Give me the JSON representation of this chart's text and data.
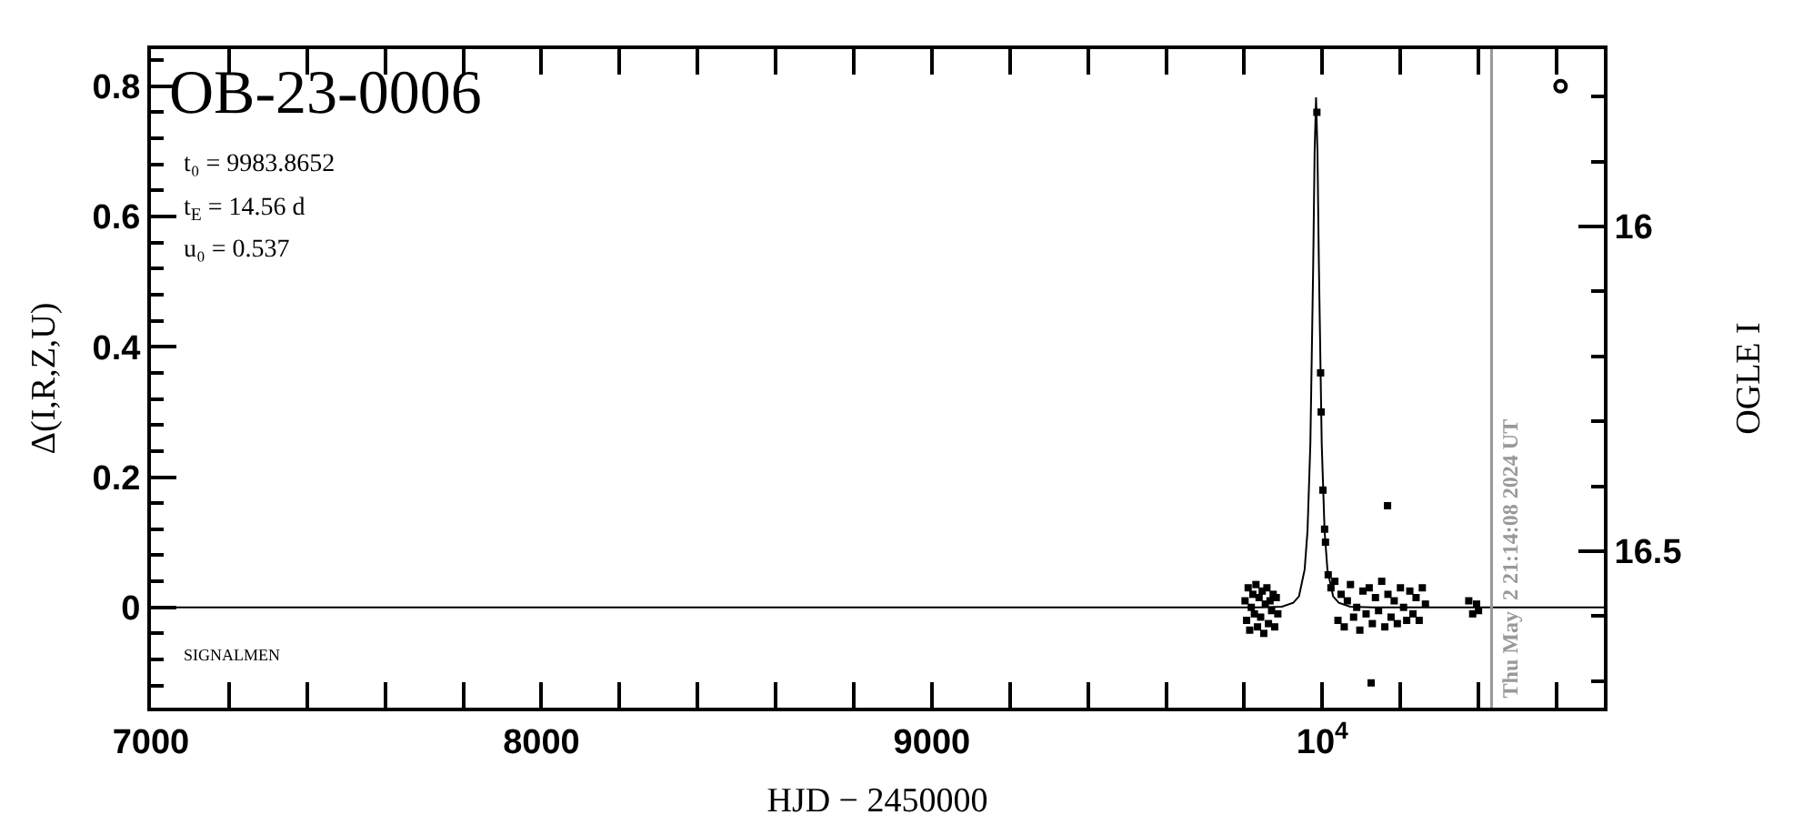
{
  "chart_data": {
    "type": "scatter",
    "title": "OB-23-0006",
    "xlabel": "HJD − 2450000",
    "ylabel": "Δ(I,R,Z,U)",
    "y2label": "OGLE I",
    "annotations": [
      "t₀ = 9983.8652",
      "t$_{E}$ = 14.56 d",
      "u₀ = 0.537",
      "SIGNALMEN",
      {
        "text": "Thu May  2 21:14:08 2024 UT",
        "x": 10433.4,
        "y": -0.154
      }
    ],
    "xlim": [
      7000,
      10721
    ],
    "xticks": [
      7000,
      {
        "value": 7200,
        "label": null
      },
      {
        "value": 7400,
        "label": null
      },
      {
        "value": 7600,
        "label": null
      },
      {
        "value": 7800,
        "label": null
      },
      8000,
      {
        "value": 8200,
        "label": null
      },
      {
        "value": 8400,
        "label": null
      },
      {
        "value": 8600,
        "label": null
      },
      {
        "value": 8800,
        "label": null
      },
      9000,
      {
        "value": 9200,
        "label": null
      },
      {
        "value": 9400,
        "label": null
      },
      {
        "value": 9600,
        "label": null
      },
      {
        "value": 9800,
        "label": null
      },
      {
        "value": 10000,
        "label": "10$^{4}$"
      },
      {
        "value": 10200,
        "label": null
      },
      {
        "value": 10400,
        "label": null
      },
      {
        "value": 10600,
        "label": null
      }
    ],
    "ylim": [
      -0.154,
      0.857
    ],
    "yticks": [
      {
        "value": -0.12,
        "label": null
      },
      {
        "value": -0.08,
        "label": null
      },
      {
        "value": -0.04,
        "label": null
      },
      0,
      {
        "value": 0.04,
        "label": null
      },
      {
        "value": 0.08,
        "label": null
      },
      {
        "value": 0.12,
        "label": null
      },
      {
        "value": 0.16,
        "label": null
      },
      0.2,
      {
        "value": 0.24,
        "label": null
      },
      {
        "value": 0.28,
        "label": null
      },
      {
        "value": 0.32,
        "label": null
      },
      {
        "value": 0.36,
        "label": null
      },
      0.4,
      {
        "value": 0.44,
        "label": null
      },
      {
        "value": 0.48,
        "label": null
      },
      {
        "value": 0.52,
        "label": null
      },
      {
        "value": 0.56,
        "label": null
      },
      0.6,
      {
        "value": 0.64,
        "label": null
      },
      {
        "value": 0.68,
        "label": null
      },
      {
        "value": 0.72,
        "label": null
      },
      {
        "value": 0.76,
        "label": null
      },
      0.8,
      {
        "value": 0.84,
        "label": null
      }
    ],
    "y2lim": [
      16.741,
      15.727
    ],
    "y2ticks": [
      {
        "value": 15.8,
        "label": null
      },
      {
        "value": 15.9,
        "label": null
      },
      16,
      {
        "value": 16.1,
        "label": null
      },
      {
        "value": 16.2,
        "label": null
      },
      {
        "value": 16.3,
        "label": null
      },
      {
        "value": 16.4,
        "label": null
      },
      16.5,
      {
        "value": 16.6,
        "label": null
      },
      {
        "value": 16.7,
        "label": null
      }
    ],
    "ref_lines": [
      {
        "axis": "x",
        "value": 10433.4,
        "color": "#999999"
      }
    ],
    "series": [
      {
        "type": "line",
        "color": "#000000",
        "marker": "none",
        "x": [
          7000,
          9838.2,
          9896.5,
          9925.6,
          9940.2,
          9954.7,
          9962.0,
          9969.3,
          9976.6,
          9980.2,
          9983.9,
          9987.5,
          9991.1,
          9998.4,
          10005.7,
          10013.0,
          10027.5,
          10042.1,
          10071.2,
          10129.5,
          10721
        ],
        "values": [
          0,
          0,
          0.001,
          0.007,
          0.017,
          0.058,
          0.117,
          0.251,
          0.527,
          0.699,
          0.783,
          0.699,
          0.527,
          0.251,
          0.117,
          0.058,
          0.017,
          0.007,
          0.001,
          0,
          0
        ]
      },
      {
        "color": "#000000",
        "marker": "square",
        "x": [
          9802,
          9806,
          9810,
          9814,
          9818,
          9822,
          9826,
          9830,
          9834,
          9838,
          9842,
          9846,
          9850,
          9854,
          9858,
          9862,
          9866,
          9870,
          9874,
          9878,
          9882,
          9886,
          9986,
          9995.5,
          9997,
          10001.5,
          10005.7,
          10008,
          10015,
          10022,
          10032,
          10040,
          10048,
          10056,
          10064,
          10072,
          10080,
          10088,
          10096,
          10104,
          10112,
          10120,
          10128,
          10136,
          10144,
          10152,
          10160,
          10168,
          10176,
          10184,
          10192,
          10200,
          10208,
          10216,
          10224,
          10232,
          10240,
          10248,
          10256,
          10264,
          10167,
          10125,
          10375,
          10385,
          10395,
          10400
        ],
        "values": [
          0.01,
          -0.02,
          0.03,
          -0.035,
          0.0,
          0.02,
          -0.01,
          0.035,
          -0.03,
          0.015,
          -0.015,
          0.025,
          -0.04,
          0.005,
          0.03,
          -0.025,
          0.01,
          -0.005,
          0.02,
          -0.03,
          0.015,
          -0.01,
          0.76,
          0.36,
          0.3,
          0.18,
          0.12,
          0.1,
          0.05,
          0.03,
          0.04,
          -0.02,
          0.02,
          -0.03,
          0.01,
          0.035,
          -0.015,
          0.0,
          -0.035,
          0.025,
          -0.01,
          0.03,
          -0.025,
          0.015,
          -0.005,
          0.04,
          -0.03,
          0.02,
          -0.015,
          0.01,
          -0.025,
          0.03,
          0.0,
          -0.02,
          0.025,
          -0.01,
          0.015,
          -0.02,
          0.03,
          0.005,
          0.156,
          -0.116,
          0.01,
          -0.01,
          0.005,
          -0.005
        ]
      },
      {
        "color": "#000000",
        "marker": "circle",
        "x": [
          10610
        ],
        "values": [
          0.8
        ]
      }
    ]
  }
}
